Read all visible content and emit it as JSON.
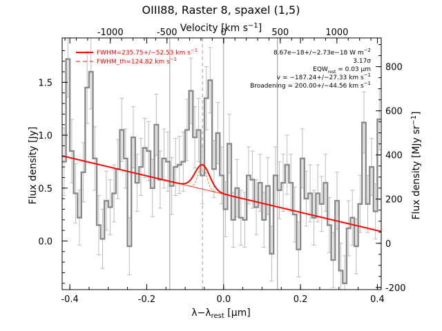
{
  "chart_data": {
    "type": "line",
    "title": "OIII88, Raster 8, spaxel (1,5)",
    "xlabel_main": "λ−λ",
    "xlabel_sub": "rest",
    "xlabel_unit": " [μm]",
    "ylabel": "Flux density [Jy]",
    "y2label": "Flux density [MJy sr",
    "y2label_sup": "−1",
    "y2label_end": "]",
    "top_label": "Velocity [km s",
    "top_label_sup": "−1",
    "top_label_end": "]",
    "xlim": [
      -0.42,
      0.41
    ],
    "ylim": [
      -0.46,
      1.92
    ],
    "y2lim": [
      -210,
      930
    ],
    "xticks": [
      "-0.4",
      "-0.2",
      "0.0",
      "0.2",
      "0.4"
    ],
    "yticks": [
      "0.0",
      "0.5",
      "1.0",
      "1.5"
    ],
    "y2ticks": [
      "-200",
      "0",
      "200",
      "400",
      "600",
      "800"
    ],
    "vticks": [
      "-1000",
      "-500",
      "0",
      "500",
      "1000"
    ],
    "vlines": [
      -0.14,
      0.0,
      0.14
    ],
    "dashed_vline": -0.055,
    "legend": [
      {
        "label": "FWHM=235.75+/−52.53 km s",
        "sup": "−1",
        "style": "solid"
      },
      {
        "label": "FWHM_th=124.82 km s",
        "sup": "−1",
        "style": "dashed"
      }
    ],
    "annotations": [
      "8.67e−18+/−2.73e−18 W m",
      "3.17σ",
      "EQW",
      "v = −187.24+/−27.33 km s",
      "Broadening = 200.00+/−44.56 km s"
    ],
    "annotation_sup": [
      "−2",
      "",
      "",
      "−1",
      "−1"
    ],
    "eqw_sub": "rest",
    "eqw_value": " = 0.03 μm",
    "spectrum": [
      [
        -0.415,
        0.75
      ],
      [
        -0.405,
        1.72
      ],
      [
        -0.395,
        0.85
      ],
      [
        -0.385,
        0.45
      ],
      [
        -0.375,
        0.22
      ],
      [
        -0.365,
        0.65
      ],
      [
        -0.355,
        1.45
      ],
      [
        -0.345,
        1.6
      ],
      [
        -0.335,
        0.78
      ],
      [
        -0.325,
        0.15
      ],
      [
        -0.315,
        0.02
      ],
      [
        -0.305,
        0.38
      ],
      [
        -0.295,
        0.32
      ],
      [
        -0.285,
        0.45
      ],
      [
        -0.275,
        0.68
      ],
      [
        -0.265,
        1.05
      ],
      [
        -0.255,
        0.78
      ],
      [
        -0.245,
        -0.05
      ],
      [
        -0.235,
        0.98
      ],
      [
        -0.225,
        0.55
      ],
      [
        -0.215,
        0.7
      ],
      [
        -0.205,
        0.88
      ],
      [
        -0.195,
        0.85
      ],
      [
        -0.185,
        0.5
      ],
      [
        -0.175,
        1.1
      ],
      [
        -0.165,
        0.58
      ],
      [
        -0.155,
        0.78
      ],
      [
        -0.145,
        0.75
      ],
      [
        -0.135,
        0.52
      ],
      [
        -0.125,
        0.7
      ],
      [
        -0.115,
        0.72
      ],
      [
        -0.105,
        0.75
      ],
      [
        -0.095,
        1.05
      ],
      [
        -0.085,
        1.42
      ],
      [
        -0.075,
        0.98
      ],
      [
        -0.065,
        1.05
      ],
      [
        -0.055,
        0.62
      ],
      [
        -0.045,
        1.35
      ],
      [
        -0.035,
        1.52
      ],
      [
        -0.025,
        0.68
      ],
      [
        -0.015,
        1.02
      ],
      [
        -0.005,
        0.62
      ],
      [
        0.005,
        0.3
      ],
      [
        0.015,
        0.92
      ],
      [
        0.025,
        0.2
      ],
      [
        0.035,
        0.5
      ],
      [
        0.045,
        0.22
      ],
      [
        0.055,
        0.2
      ],
      [
        0.065,
        0.62
      ],
      [
        0.075,
        0.58
      ],
      [
        0.085,
        0.32
      ],
      [
        0.095,
        0.55
      ],
      [
        0.105,
        0.2
      ],
      [
        0.115,
        0.52
      ],
      [
        0.125,
        -0.12
      ],
      [
        0.135,
        0.62
      ],
      [
        0.145,
        0.48
      ],
      [
        0.155,
        0.55
      ],
      [
        0.165,
        0.72
      ],
      [
        0.175,
        0.55
      ],
      [
        0.185,
        0.25
      ],
      [
        0.195,
        -0.08
      ],
      [
        0.205,
        0.78
      ],
      [
        0.215,
        0.4
      ],
      [
        0.225,
        0.45
      ],
      [
        0.235,
        0.22
      ],
      [
        0.245,
        0.45
      ],
      [
        0.255,
        0.35
      ],
      [
        0.265,
        0.55
      ],
      [
        0.275,
        0.15
      ],
      [
        0.285,
        -0.18
      ],
      [
        0.295,
        0.38
      ],
      [
        0.305,
        -0.28
      ],
      [
        0.315,
        -0.4
      ],
      [
        0.325,
        0.12
      ],
      [
        0.335,
        0.22
      ],
      [
        0.345,
        -0.05
      ],
      [
        0.355,
        0.35
      ],
      [
        0.365,
        1.12
      ],
      [
        0.375,
        0.35
      ],
      [
        0.385,
        0.7
      ],
      [
        0.395,
        0.28
      ],
      [
        0.405,
        1.15
      ]
    ],
    "errors": [
      0.32,
      0.36,
      0.3,
      0.28,
      0.26,
      0.28,
      0.34,
      0.35,
      0.3,
      0.28,
      0.28,
      0.28,
      0.26,
      0.27,
      0.28,
      0.3,
      0.28,
      0.27,
      0.29,
      0.27,
      0.27,
      0.28,
      0.28,
      0.27,
      0.29,
      0.27,
      0.28,
      0.28,
      0.27,
      0.27,
      0.27,
      0.28,
      0.29,
      0.31,
      0.29,
      0.3,
      0.27,
      0.3,
      0.31,
      0.27,
      0.29,
      0.27,
      0.26,
      0.28,
      0.26,
      0.27,
      0.26,
      0.26,
      0.27,
      0.27,
      0.26,
      0.27,
      0.26,
      0.27,
      0.26,
      0.27,
      0.27,
      0.27,
      0.28,
      0.27,
      0.26,
      0.26,
      0.28,
      0.26,
      0.27,
      0.26,
      0.27,
      0.26,
      0.27,
      0.26,
      0.26,
      0.27,
      0.26,
      0.26,
      0.26,
      0.26,
      0.26,
      0.27,
      0.29,
      0.27,
      0.27,
      0.26,
      0.29
    ],
    "continuum": {
      "x0": -0.42,
      "y0": 0.805,
      "x1": 0.41,
      "y1": 0.09
    },
    "gaussian": {
      "center": -0.055,
      "amplitude": 0.23,
      "sigma": 0.019
    },
    "gaussian_th": {
      "center": -0.055,
      "amplitude": 0.23,
      "sigma": 0.0105
    },
    "colors": {
      "spectrum": "#888888",
      "error": "#bbbbbb",
      "fit": "#ff0000",
      "gauss_th": "#e08020",
      "vline": "#999999"
    }
  }
}
